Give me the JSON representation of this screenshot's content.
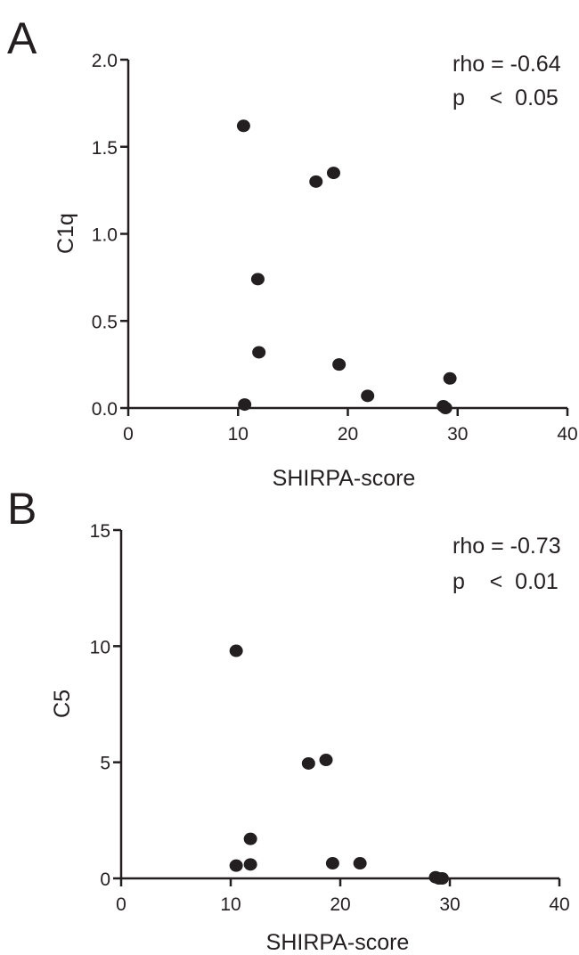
{
  "chart_data": [
    {
      "panel": "A",
      "type": "scatter",
      "xlabel": "SHIRPA-score",
      "ylabel": "C1q",
      "xlim": [
        0,
        40
      ],
      "ylim": [
        0,
        2.0
      ],
      "xticks": [
        "0",
        "10",
        "20",
        "30",
        "40"
      ],
      "yticks": [
        "0.0",
        "0.5",
        "1.0",
        "1.5",
        "2.0"
      ],
      "stat_lines": [
        "rho = -0.64",
        "p    <  0.05"
      ],
      "points": [
        {
          "x": 10.5,
          "y": 1.62
        },
        {
          "x": 10.6,
          "y": 0.02
        },
        {
          "x": 11.8,
          "y": 0.74
        },
        {
          "x": 11.9,
          "y": 0.32
        },
        {
          "x": 17.1,
          "y": 1.3
        },
        {
          "x": 18.7,
          "y": 1.35
        },
        {
          "x": 19.2,
          "y": 0.25
        },
        {
          "x": 21.8,
          "y": 0.07
        },
        {
          "x": 28.7,
          "y": 0.01
        },
        {
          "x": 28.9,
          "y": 0.0
        },
        {
          "x": 29.3,
          "y": 0.17
        }
      ],
      "marker_color": "#231f20",
      "grid": false
    },
    {
      "panel": "B",
      "type": "scatter",
      "xlabel": "SHIRPA-score",
      "ylabel": "C5",
      "xlim": [
        0,
        40
      ],
      "ylim": [
        0,
        15
      ],
      "xticks": [
        "0",
        "10",
        "20",
        "30",
        "40"
      ],
      "yticks": [
        "0",
        "5",
        "10",
        "15"
      ],
      "stat_lines": [
        "rho = -0.73",
        "p    <  0.01"
      ],
      "points": [
        {
          "x": 10.5,
          "y": 9.8
        },
        {
          "x": 10.5,
          "y": 0.55
        },
        {
          "x": 11.8,
          "y": 1.7
        },
        {
          "x": 11.8,
          "y": 0.6
        },
        {
          "x": 17.1,
          "y": 4.95
        },
        {
          "x": 18.7,
          "y": 5.1
        },
        {
          "x": 19.3,
          "y": 0.65
        },
        {
          "x": 21.8,
          "y": 0.65
        },
        {
          "x": 28.7,
          "y": 0.05
        },
        {
          "x": 29.0,
          "y": 0.0
        },
        {
          "x": 29.3,
          "y": 0.0
        }
      ],
      "marker_color": "#231f20",
      "grid": false
    }
  ]
}
